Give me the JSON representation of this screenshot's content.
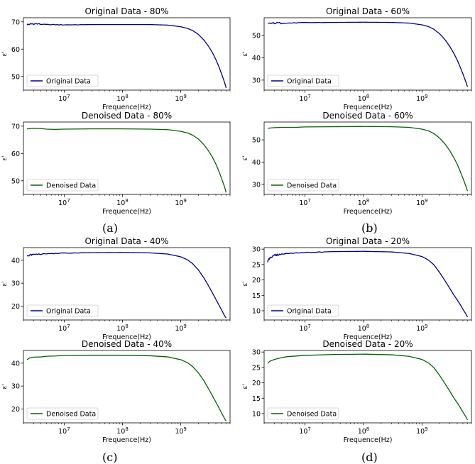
{
  "chart_data": [
    {
      "type": "line",
      "group": "(a)",
      "title": "Original Data - 80%",
      "xlabel": "Frequence(Hz)",
      "ylabel": "ε'",
      "xscale": "log",
      "xlim": [
        2000000,
        7000000000
      ],
      "ylim": [
        45,
        71.5
      ],
      "yticks": [
        50,
        60,
        70
      ],
      "xticks": [
        {
          "value": 10000000,
          "label": "10^7"
        },
        {
          "value": 100000000,
          "label": "10^8"
        },
        {
          "value": 1000000000,
          "label": "10^9"
        }
      ],
      "legend": "lower-left",
      "grid": false,
      "series": [
        {
          "name": "Original Data",
          "color": "#00008b",
          "noisy": true,
          "x": [
            2300000,
            3000000,
            5000000,
            10000000,
            30000000,
            100000000,
            300000000,
            600000000,
            1000000000,
            1300000000,
            1600000000,
            2000000000,
            2500000000,
            3000000000,
            3500000000,
            4000000000,
            4500000000,
            5000000000,
            5600000000,
            6000000000
          ],
          "y": [
            69.0,
            69.3,
            69.0,
            68.9,
            69.0,
            69.0,
            69.0,
            68.8,
            68.2,
            67.6,
            66.8,
            65.4,
            63.3,
            61.0,
            58.7,
            56.2,
            53.6,
            51.0,
            48.0,
            45.8
          ]
        }
      ]
    },
    {
      "type": "line",
      "group": "(a)",
      "title": "Denoised Data - 80%",
      "xlabel": "Frequence(Hz)",
      "ylabel": "ε'",
      "xscale": "log",
      "xlim": [
        2000000,
        7000000000
      ],
      "ylim": [
        45,
        71.5
      ],
      "yticks": [
        50,
        60,
        70
      ],
      "xticks": [
        {
          "value": 10000000,
          "label": "10^7"
        },
        {
          "value": 100000000,
          "label": "10^8"
        },
        {
          "value": 1000000000,
          "label": "10^9"
        }
      ],
      "legend": "lower-left",
      "grid": false,
      "series": [
        {
          "name": "Denoised Data",
          "color": "#006400",
          "noisy": false,
          "x": [
            2300000,
            3000000,
            4000000,
            5000000,
            7000000,
            10000000,
            30000000,
            100000000,
            300000000,
            600000000,
            1000000000,
            1300000000,
            1600000000,
            2000000000,
            2500000000,
            3000000000,
            3500000000,
            4000000000,
            4500000000,
            5000000000,
            5600000000,
            6000000000
          ],
          "y": [
            69.0,
            69.2,
            69.1,
            68.9,
            68.8,
            68.9,
            69.0,
            69.0,
            68.9,
            68.7,
            68.1,
            67.5,
            66.7,
            65.3,
            63.2,
            60.9,
            58.6,
            56.1,
            53.5,
            50.9,
            47.9,
            45.7
          ]
        }
      ]
    },
    {
      "type": "line",
      "group": "(b)",
      "title": "Original Data - 60%",
      "xlabel": "Frequence(Hz)",
      "ylabel": "ε'",
      "xscale": "log",
      "xlim": [
        2000000,
        7000000000
      ],
      "ylim": [
        25.5,
        58
      ],
      "yticks": [
        30,
        40,
        50
      ],
      "xticks": [
        {
          "value": 10000000,
          "label": "10^7"
        },
        {
          "value": 100000000,
          "label": "10^8"
        },
        {
          "value": 1000000000,
          "label": "10^9"
        }
      ],
      "legend": "lower-left",
      "grid": false,
      "series": [
        {
          "name": "Original Data",
          "color": "#00008b",
          "noisy": true,
          "x": [
            2300000,
            3000000,
            5000000,
            10000000,
            30000000,
            100000000,
            300000000,
            600000000,
            1000000000,
            1300000000,
            1600000000,
            2000000000,
            2500000000,
            3000000000,
            3500000000,
            4000000000,
            4500000000,
            5000000000,
            5600000000,
            6000000000
          ],
          "y": [
            55.3,
            55.6,
            55.6,
            55.8,
            55.9,
            56.0,
            55.9,
            55.6,
            54.8,
            54.0,
            52.8,
            50.8,
            48.0,
            45.0,
            42.0,
            39.0,
            35.8,
            32.8,
            29.3,
            27.0
          ]
        }
      ]
    },
    {
      "type": "line",
      "group": "(b)",
      "title": "Denoised Data - 60%",
      "xlabel": "Frequence(Hz)",
      "ylabel": "ε'",
      "xscale": "log",
      "xlim": [
        2000000,
        7000000000
      ],
      "ylim": [
        25.5,
        58
      ],
      "yticks": [
        30,
        40,
        50
      ],
      "xticks": [
        {
          "value": 10000000,
          "label": "10^7"
        },
        {
          "value": 100000000,
          "label": "10^8"
        },
        {
          "value": 1000000000,
          "label": "10^9"
        }
      ],
      "legend": "lower-left",
      "grid": false,
      "series": [
        {
          "name": "Denoised Data",
          "color": "#006400",
          "noisy": false,
          "x": [
            2300000,
            3000000,
            4000000,
            5000000,
            7000000,
            10000000,
            30000000,
            100000000,
            300000000,
            600000000,
            1000000000,
            1300000000,
            1600000000,
            2000000000,
            2500000000,
            3000000000,
            3500000000,
            4000000000,
            4500000000,
            5000000000,
            5600000000,
            6000000000
          ],
          "y": [
            55.2,
            55.5,
            55.6,
            55.6,
            55.6,
            55.8,
            55.9,
            56.0,
            55.9,
            55.6,
            54.8,
            54.0,
            52.8,
            50.8,
            48.0,
            45.0,
            42.0,
            39.0,
            35.8,
            32.8,
            29.3,
            27.0
          ]
        }
      ]
    },
    {
      "type": "line",
      "group": "(c)",
      "title": "Original Data - 40%",
      "xlabel": "Frequence(Hz)",
      "ylabel": "ε'",
      "xscale": "log",
      "xlim": [
        2000000,
        7000000000
      ],
      "ylim": [
        14,
        45.5
      ],
      "yticks": [
        20,
        30,
        40
      ],
      "xticks": [
        {
          "value": 10000000,
          "label": "10^7"
        },
        {
          "value": 100000000,
          "label": "10^8"
        },
        {
          "value": 1000000000,
          "label": "10^9"
        }
      ],
      "legend": "lower-left",
      "grid": false,
      "series": [
        {
          "name": "Original Data",
          "color": "#00008b",
          "noisy": true,
          "x": [
            2300000,
            3000000,
            5000000,
            10000000,
            30000000,
            100000000,
            300000000,
            600000000,
            1000000000,
            1300000000,
            1600000000,
            2000000000,
            2500000000,
            3000000000,
            3500000000,
            4000000000,
            4500000000,
            5000000000,
            5600000000,
            6000000000
          ],
          "y": [
            42.0,
            42.5,
            42.8,
            43.1,
            43.3,
            43.4,
            43.2,
            42.7,
            41.5,
            40.2,
            38.5,
            35.8,
            32.3,
            28.8,
            25.7,
            23.0,
            20.6,
            18.4,
            16.0,
            14.8
          ]
        }
      ]
    },
    {
      "type": "line",
      "group": "(c)",
      "title": "Denoised Data - 40%",
      "xlabel": "Frequence(Hz)",
      "ylabel": "ε'",
      "xscale": "log",
      "xlim": [
        2000000,
        7000000000
      ],
      "ylim": [
        14,
        45.5
      ],
      "yticks": [
        20,
        30,
        40
      ],
      "xticks": [
        {
          "value": 10000000,
          "label": "10^7"
        },
        {
          "value": 100000000,
          "label": "10^8"
        },
        {
          "value": 1000000000,
          "label": "10^9"
        }
      ],
      "legend": "lower-left",
      "grid": false,
      "series": [
        {
          "name": "Denoised Data",
          "color": "#006400",
          "noisy": false,
          "x": [
            2300000,
            2600000,
            3000000,
            4000000,
            5000000,
            7000000,
            10000000,
            30000000,
            100000000,
            300000000,
            600000000,
            1000000000,
            1300000000,
            1600000000,
            2000000000,
            2500000000,
            3000000000,
            3500000000,
            4000000000,
            4500000000,
            5000000000,
            5600000000,
            6000000000
          ],
          "y": [
            41.5,
            42.3,
            42.6,
            42.7,
            43.0,
            43.1,
            43.3,
            43.4,
            43.4,
            43.2,
            42.7,
            41.5,
            40.2,
            38.5,
            35.8,
            32.3,
            28.8,
            25.7,
            23.0,
            20.6,
            18.4,
            16.0,
            14.8
          ]
        }
      ]
    },
    {
      "type": "line",
      "group": "(d)",
      "title": "Original Data - 20%",
      "xlabel": "Frequence(Hz)",
      "ylabel": "ε'",
      "xscale": "log",
      "xlim": [
        2000000,
        7000000000
      ],
      "ylim": [
        7,
        30.5
      ],
      "yticks": [
        10,
        15,
        20,
        25,
        30
      ],
      "xticks": [
        {
          "value": 10000000,
          "label": "10^7"
        },
        {
          "value": 100000000,
          "label": "10^8"
        },
        {
          "value": 1000000000,
          "label": "10^9"
        }
      ],
      "legend": "lower-left",
      "grid": false,
      "series": [
        {
          "name": "Original Data",
          "color": "#00008b",
          "noisy": true,
          "x": [
            2300000,
            2500000,
            3000000,
            4000000,
            5000000,
            10000000,
            30000000,
            100000000,
            300000000,
            600000000,
            1000000000,
            1300000000,
            1600000000,
            2000000000,
            2500000000,
            3000000000,
            3500000000,
            4000000000,
            4500000000,
            5000000000,
            5600000000,
            6000000000
          ],
          "y": [
            26.0,
            27.2,
            28.0,
            28.4,
            28.6,
            28.9,
            29.2,
            29.3,
            29.1,
            28.6,
            27.6,
            26.4,
            24.9,
            22.4,
            19.6,
            17.2,
            15.1,
            13.5,
            12.0,
            10.5,
            9.0,
            8.0
          ]
        }
      ]
    },
    {
      "type": "line",
      "group": "(d)",
      "title": "Denoised Data - 20%",
      "xlabel": "Frequence(Hz)",
      "ylabel": "ε'",
      "xscale": "log",
      "xlim": [
        2000000,
        7000000000
      ],
      "ylim": [
        7,
        30.5
      ],
      "yticks": [
        10,
        15,
        20,
        25,
        30
      ],
      "xticks": [
        {
          "value": 10000000,
          "label": "10^7"
        },
        {
          "value": 100000000,
          "label": "10^8"
        },
        {
          "value": 1000000000,
          "label": "10^9"
        }
      ],
      "legend": "lower-left",
      "grid": false,
      "series": [
        {
          "name": "Denoised Data",
          "color": "#006400",
          "noisy": false,
          "x": [
            2300000,
            2500000,
            3000000,
            4000000,
            5000000,
            7000000,
            10000000,
            30000000,
            100000000,
            300000000,
            600000000,
            1000000000,
            1300000000,
            1600000000,
            2000000000,
            2500000000,
            3000000000,
            3500000000,
            4000000000,
            4500000000,
            5000000000,
            5600000000,
            6000000000
          ],
          "y": [
            26.3,
            27.0,
            27.6,
            28.2,
            28.5,
            28.7,
            28.9,
            29.2,
            29.3,
            29.1,
            28.6,
            27.6,
            26.4,
            24.9,
            22.4,
            19.6,
            17.2,
            15.1,
            13.5,
            12.0,
            10.5,
            9.0,
            8.0
          ]
        }
      ]
    }
  ],
  "figure": {
    "panel_labels": [
      "(a)",
      "(b)",
      "(c)",
      "(d)"
    ],
    "text_color": "#000000",
    "axes_color": "#000000",
    "background": "#ffffff"
  }
}
